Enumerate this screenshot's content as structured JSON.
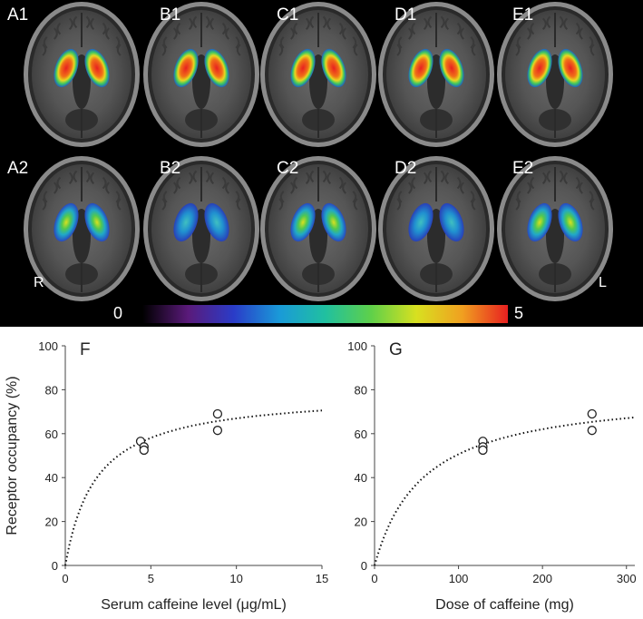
{
  "figure": {
    "brain_panels": [
      {
        "label": "A1",
        "row": 1,
        "col": 0,
        "intensity": "high"
      },
      {
        "label": "B1",
        "row": 1,
        "col": 1,
        "intensity": "high"
      },
      {
        "label": "C1",
        "row": 1,
        "col": 2,
        "intensity": "high"
      },
      {
        "label": "D1",
        "row": 1,
        "col": 3,
        "intensity": "high"
      },
      {
        "label": "E1",
        "row": 1,
        "col": 4,
        "intensity": "high"
      },
      {
        "label": "A2",
        "row": 2,
        "col": 0,
        "intensity": "low"
      },
      {
        "label": "B2",
        "row": 2,
        "col": 1,
        "intensity": "low"
      },
      {
        "label": "C2",
        "row": 2,
        "col": 2,
        "intensity": "low"
      },
      {
        "label": "D2",
        "row": 2,
        "col": 3,
        "intensity": "low"
      },
      {
        "label": "E2",
        "row": 2,
        "col": 4,
        "intensity": "low"
      }
    ],
    "orientation": {
      "right": "R",
      "left": "L"
    },
    "colorbar": {
      "min": "0",
      "max": "5",
      "colors": [
        "#000000",
        "#5a1a7a",
        "#2a3cc8",
        "#1a9ad8",
        "#20c0a0",
        "#5ed04a",
        "#d8e020",
        "#f0a020",
        "#e82020"
      ]
    },
    "colors": {
      "background_top": "#000000",
      "marker": "#222222",
      "curve": "#111111"
    }
  },
  "chart_data": [
    {
      "type": "scatter",
      "label": "F",
      "xlabel": "Serum caffeine level (μg/mL)",
      "ylabel": "Receptor occupancy (%)",
      "xlim": [
        0,
        15
      ],
      "ylim": [
        0,
        100
      ],
      "xticks": [
        0,
        5,
        10,
        15
      ],
      "yticks": [
        0,
        20,
        40,
        60,
        80,
        100
      ],
      "points": [
        {
          "x": 4.4,
          "y": 56.5
        },
        {
          "x": 4.6,
          "y": 54.0
        },
        {
          "x": 4.6,
          "y": 52.5
        },
        {
          "x": 8.9,
          "y": 69.0
        },
        {
          "x": 8.9,
          "y": 61.5
        }
      ],
      "fit": {
        "style": "dotted",
        "emax": 79,
        "ec50": 1.8,
        "x_range": [
          0,
          15
        ]
      }
    },
    {
      "type": "scatter",
      "label": "G",
      "xlabel": "Dose of caffeine (mg)",
      "ylabel": "",
      "xlim": [
        0,
        310
      ],
      "ylim": [
        0,
        100
      ],
      "xticks": [
        0,
        100,
        200,
        300
      ],
      "yticks": [
        0,
        20,
        40,
        60,
        80,
        100
      ],
      "points": [
        {
          "x": 129,
          "y": 56.5
        },
        {
          "x": 129,
          "y": 54.0
        },
        {
          "x": 129,
          "y": 52.5
        },
        {
          "x": 259,
          "y": 69.0
        },
        {
          "x": 259,
          "y": 61.5
        }
      ],
      "fit": {
        "style": "dotted",
        "emax": 80,
        "ec50": 58,
        "x_range": [
          0,
          310
        ]
      }
    }
  ]
}
